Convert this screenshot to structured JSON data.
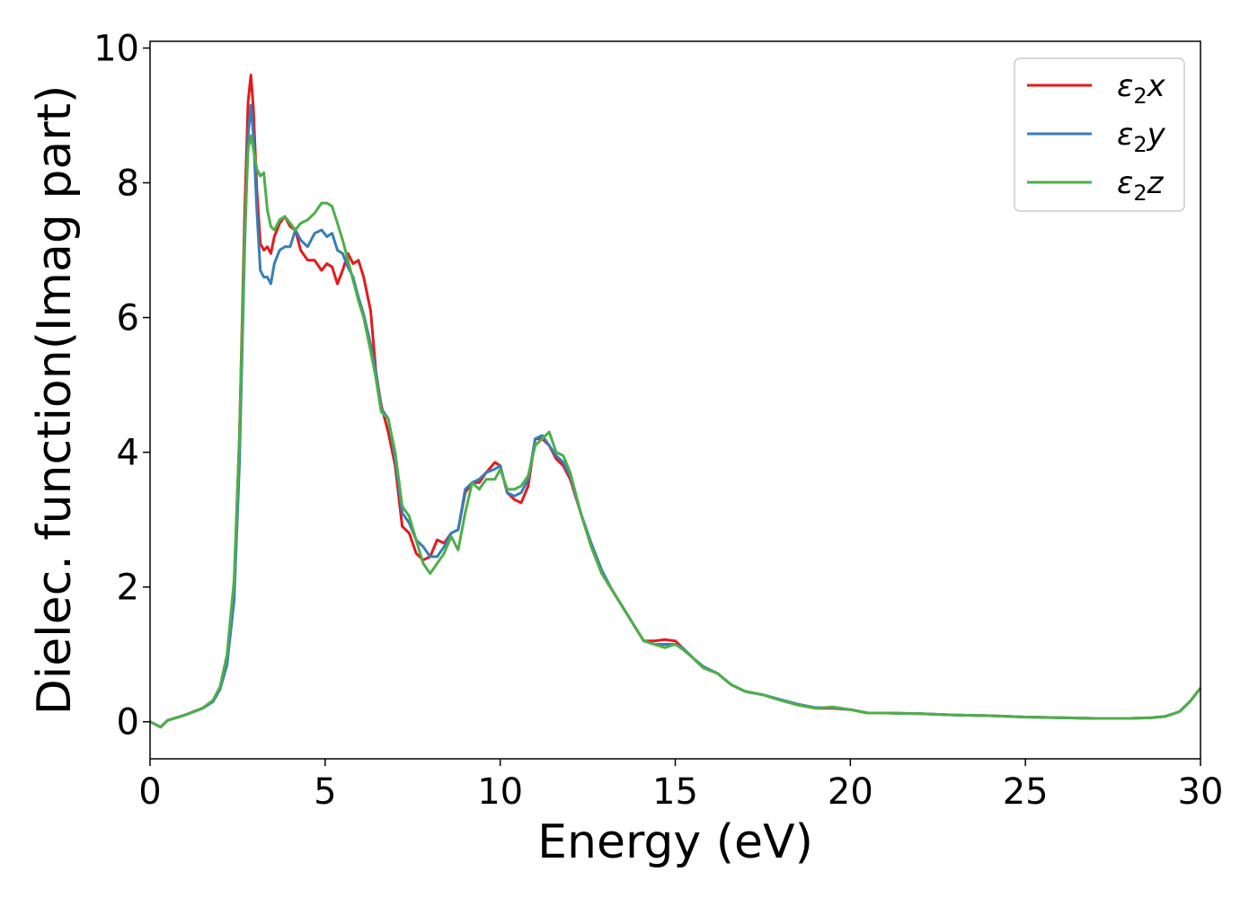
{
  "chart_data": {
    "type": "line",
    "title": "",
    "xlabel": "Energy (eV)",
    "ylabel": "Dielec. function(Imag part)",
    "xlim": [
      0,
      30
    ],
    "ylim": [
      -0.55,
      10.1
    ],
    "xticks": [
      0,
      5,
      10,
      15,
      20,
      25,
      30
    ],
    "yticks": [
      0,
      2,
      4,
      6,
      8,
      10
    ],
    "xtick_labels": [
      "0",
      "5",
      "10",
      "15",
      "20",
      "25",
      "30"
    ],
    "ytick_labels": [
      "0",
      "2",
      "4",
      "6",
      "8",
      "10"
    ],
    "grid": false,
    "legend_position": "top-right",
    "series": [
      {
        "name": "ε₂x",
        "legend_main": "ε",
        "legend_sub": "2",
        "legend_suffix": "x",
        "color": "#e41a1c",
        "x": [
          0,
          0.3,
          0.5,
          1.0,
          1.5,
          1.8,
          2.0,
          2.2,
          2.4,
          2.55,
          2.7,
          2.8,
          2.88,
          2.95,
          3.05,
          3.15,
          3.25,
          3.35,
          3.45,
          3.55,
          3.7,
          3.85,
          4.0,
          4.15,
          4.3,
          4.5,
          4.7,
          4.9,
          5.05,
          5.2,
          5.35,
          5.5,
          5.65,
          5.8,
          5.95,
          6.1,
          6.3,
          6.45,
          6.6,
          6.8,
          7.0,
          7.2,
          7.4,
          7.6,
          7.8,
          8.0,
          8.2,
          8.4,
          8.6,
          8.8,
          9.0,
          9.2,
          9.4,
          9.6,
          9.85,
          10.0,
          10.2,
          10.4,
          10.6,
          10.8,
          11.0,
          11.2,
          11.4,
          11.6,
          11.8,
          12.0,
          12.3,
          12.6,
          12.9,
          13.2,
          13.5,
          13.8,
          14.1,
          14.4,
          14.7,
          15.0,
          15.2,
          15.5,
          15.8,
          16.2,
          16.6,
          17.0,
          17.5,
          18.0,
          18.5,
          19.0,
          19.5,
          20.0,
          20.5,
          21.0,
          22.0,
          23.0,
          24.0,
          25.0,
          26.0,
          27.0,
          28.0,
          28.6,
          29.0,
          29.4,
          29.7,
          30.0
        ],
        "y": [
          0.0,
          -0.08,
          0.02,
          0.1,
          0.2,
          0.3,
          0.5,
          0.9,
          2.0,
          4.2,
          7.5,
          9.2,
          9.6,
          9.1,
          7.9,
          7.1,
          7.0,
          7.05,
          6.95,
          7.2,
          7.4,
          7.5,
          7.35,
          7.3,
          7.0,
          6.85,
          6.85,
          6.7,
          6.8,
          6.75,
          6.5,
          6.7,
          6.95,
          6.8,
          6.85,
          6.6,
          6.1,
          5.2,
          4.7,
          4.3,
          3.8,
          2.9,
          2.8,
          2.5,
          2.4,
          2.45,
          2.7,
          2.65,
          2.8,
          2.85,
          3.4,
          3.55,
          3.55,
          3.7,
          3.85,
          3.8,
          3.4,
          3.3,
          3.25,
          3.5,
          4.2,
          4.2,
          4.1,
          3.9,
          3.8,
          3.6,
          3.1,
          2.6,
          2.2,
          1.95,
          1.7,
          1.45,
          1.2,
          1.2,
          1.22,
          1.2,
          1.1,
          0.95,
          0.8,
          0.72,
          0.55,
          0.45,
          0.4,
          0.32,
          0.25,
          0.2,
          0.2,
          0.18,
          0.13,
          0.13,
          0.12,
          0.1,
          0.09,
          0.07,
          0.06,
          0.05,
          0.05,
          0.06,
          0.08,
          0.15,
          0.3,
          0.5
        ]
      },
      {
        "name": "ε₂y",
        "legend_main": "ε",
        "legend_sub": "2",
        "legend_suffix": "y",
        "color": "#377eb8",
        "x": [
          0,
          0.3,
          0.5,
          1.0,
          1.5,
          1.8,
          2.0,
          2.2,
          2.4,
          2.55,
          2.7,
          2.8,
          2.88,
          2.95,
          3.05,
          3.15,
          3.25,
          3.35,
          3.45,
          3.55,
          3.7,
          3.85,
          4.0,
          4.15,
          4.3,
          4.5,
          4.7,
          4.9,
          5.05,
          5.2,
          5.35,
          5.5,
          5.65,
          5.8,
          5.95,
          6.1,
          6.3,
          6.45,
          6.6,
          6.8,
          7.0,
          7.2,
          7.4,
          7.6,
          7.8,
          8.0,
          8.2,
          8.4,
          8.6,
          8.8,
          9.0,
          9.2,
          9.4,
          9.6,
          9.85,
          10.0,
          10.2,
          10.4,
          10.6,
          10.8,
          11.0,
          11.2,
          11.4,
          11.6,
          11.8,
          12.0,
          12.3,
          12.6,
          12.9,
          13.2,
          13.5,
          13.8,
          14.1,
          14.4,
          14.7,
          15.0,
          15.2,
          15.5,
          15.8,
          16.2,
          16.6,
          17.0,
          17.5,
          18.0,
          18.5,
          19.0,
          19.5,
          20.0,
          20.5,
          21.0,
          22.0,
          23.0,
          24.0,
          25.0,
          26.0,
          27.0,
          28.0,
          28.6,
          29.0,
          29.4,
          29.7,
          30.0
        ],
        "y": [
          0.0,
          -0.08,
          0.02,
          0.1,
          0.2,
          0.3,
          0.48,
          0.85,
          1.8,
          3.8,
          7.0,
          8.7,
          9.15,
          8.7,
          7.6,
          6.7,
          6.6,
          6.6,
          6.5,
          6.8,
          7.0,
          7.05,
          7.05,
          7.3,
          7.15,
          7.05,
          7.25,
          7.3,
          7.2,
          7.25,
          7.0,
          6.95,
          6.75,
          6.6,
          6.3,
          6.05,
          5.6,
          5.2,
          4.65,
          4.5,
          3.9,
          3.1,
          2.95,
          2.7,
          2.6,
          2.45,
          2.45,
          2.6,
          2.8,
          2.85,
          3.45,
          3.55,
          3.6,
          3.7,
          3.75,
          3.8,
          3.4,
          3.35,
          3.4,
          3.6,
          4.2,
          4.25,
          4.1,
          3.95,
          3.85,
          3.65,
          3.1,
          2.65,
          2.25,
          1.95,
          1.7,
          1.45,
          1.2,
          1.15,
          1.15,
          1.15,
          1.1,
          0.95,
          0.82,
          0.72,
          0.55,
          0.45,
          0.4,
          0.33,
          0.26,
          0.21,
          0.21,
          0.18,
          0.13,
          0.13,
          0.12,
          0.1,
          0.09,
          0.07,
          0.06,
          0.05,
          0.05,
          0.06,
          0.08,
          0.15,
          0.3,
          0.5
        ]
      },
      {
        "name": "ε₂z",
        "legend_main": "ε",
        "legend_sub": "2",
        "legend_suffix": "z",
        "color": "#4daf4a",
        "x": [
          0,
          0.3,
          0.5,
          1.0,
          1.5,
          1.8,
          2.0,
          2.2,
          2.4,
          2.55,
          2.7,
          2.8,
          2.88,
          2.95,
          3.05,
          3.15,
          3.25,
          3.35,
          3.45,
          3.55,
          3.7,
          3.85,
          4.0,
          4.15,
          4.3,
          4.5,
          4.7,
          4.9,
          5.05,
          5.2,
          5.35,
          5.5,
          5.65,
          5.8,
          5.95,
          6.1,
          6.3,
          6.45,
          6.6,
          6.8,
          7.0,
          7.2,
          7.4,
          7.6,
          7.8,
          8.0,
          8.2,
          8.4,
          8.6,
          8.8,
          9.0,
          9.2,
          9.4,
          9.6,
          9.85,
          10.0,
          10.2,
          10.4,
          10.6,
          10.8,
          11.0,
          11.2,
          11.4,
          11.6,
          11.8,
          12.0,
          12.3,
          12.6,
          12.9,
          13.2,
          13.5,
          13.8,
          14.1,
          14.4,
          14.7,
          15.0,
          15.2,
          15.5,
          15.8,
          16.2,
          16.6,
          17.0,
          17.5,
          18.0,
          18.5,
          19.0,
          19.5,
          20.0,
          20.5,
          21.0,
          22.0,
          23.0,
          24.0,
          25.0,
          26.0,
          27.0,
          28.0,
          28.6,
          29.0,
          29.4,
          29.7,
          30.0
        ],
        "y": [
          0.0,
          -0.08,
          0.02,
          0.1,
          0.2,
          0.32,
          0.52,
          1.0,
          2.1,
          4.2,
          7.2,
          8.5,
          8.7,
          8.5,
          8.2,
          8.1,
          8.15,
          7.6,
          7.35,
          7.3,
          7.45,
          7.5,
          7.4,
          7.3,
          7.4,
          7.45,
          7.55,
          7.7,
          7.7,
          7.65,
          7.4,
          7.15,
          6.85,
          6.55,
          6.25,
          6.0,
          5.5,
          5.1,
          4.6,
          4.5,
          4.0,
          3.2,
          3.05,
          2.7,
          2.35,
          2.2,
          2.35,
          2.5,
          2.75,
          2.55,
          3.1,
          3.55,
          3.45,
          3.6,
          3.6,
          3.75,
          3.45,
          3.45,
          3.5,
          3.65,
          4.1,
          4.2,
          4.3,
          4.0,
          3.95,
          3.7,
          3.1,
          2.6,
          2.2,
          1.95,
          1.7,
          1.45,
          1.2,
          1.15,
          1.1,
          1.15,
          1.08,
          0.95,
          0.8,
          0.72,
          0.55,
          0.45,
          0.4,
          0.32,
          0.25,
          0.2,
          0.22,
          0.18,
          0.13,
          0.13,
          0.12,
          0.1,
          0.09,
          0.07,
          0.06,
          0.05,
          0.05,
          0.06,
          0.08,
          0.15,
          0.3,
          0.5
        ]
      }
    ]
  }
}
